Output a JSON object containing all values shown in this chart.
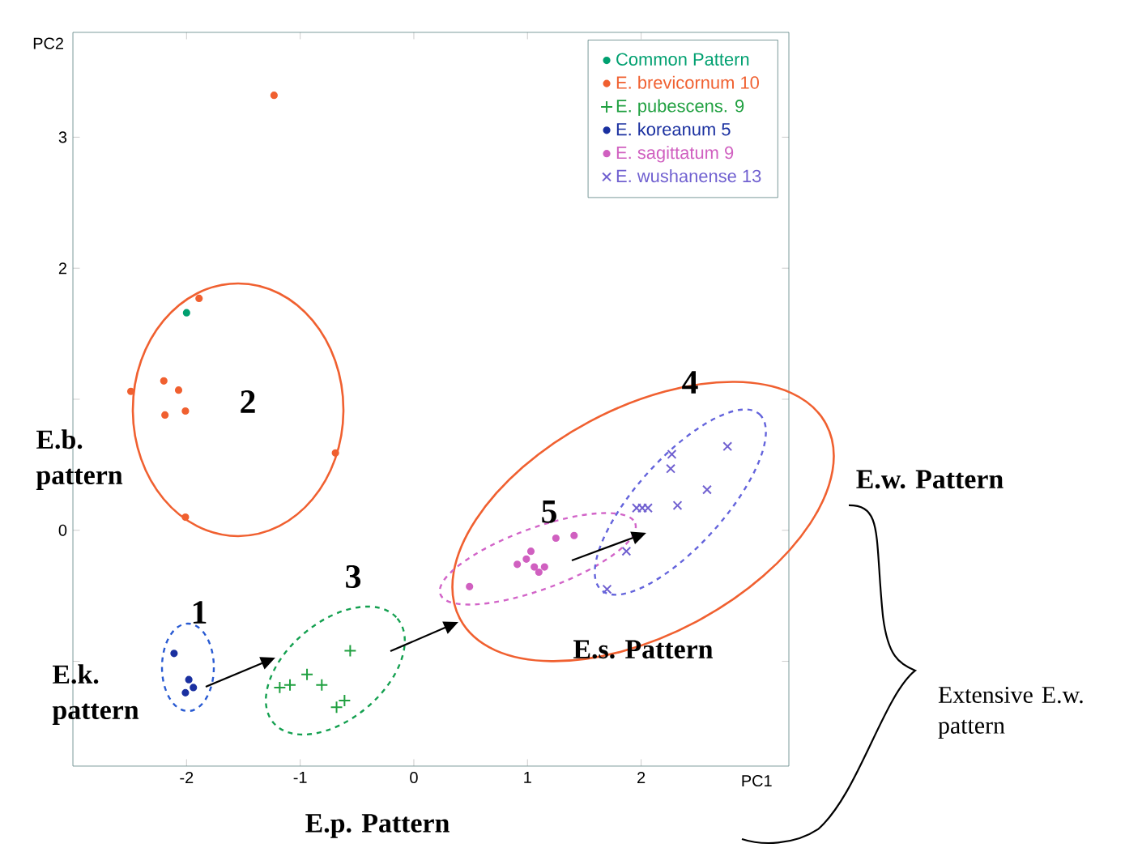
{
  "chart_data": {
    "type": "scatter",
    "xlabel": "PC1",
    "ylabel": "PC2",
    "xlim": [
      -3,
      3.3
    ],
    "ylim": [
      -1.8,
      3.8
    ],
    "xticks": [
      -2,
      -1,
      0,
      1,
      2
    ],
    "yticks": [
      {
        "value": -1,
        "label": null
      },
      0,
      {
        "value": 1,
        "label": null
      },
      2,
      3
    ],
    "legend": "top right",
    "series": [
      {
        "name": "Common Pattern",
        "color": "#00a070",
        "marker": "circle",
        "x": [
          -2.0
        ],
        "values": [
          1.66
        ]
      },
      {
        "name": "E. brevicornum  10",
        "color": "#f06030",
        "marker": "circle",
        "x": [
          -1.23,
          -1.89,
          -2.49,
          -2.2,
          -2.07,
          -2.19,
          -2.01,
          -0.69,
          -2.01
        ],
        "values": [
          3.32,
          1.77,
          1.06,
          1.14,
          1.07,
          0.88,
          0.91,
          0.59,
          0.1
        ]
      },
      {
        "name": "E. pubescens.  9",
        "color": "#20a040",
        "marker": "plus",
        "x": [
          -0.56,
          -1.09,
          -0.94,
          -0.81,
          -0.68,
          -0.61,
          -1.18
        ],
        "values": [
          -0.92,
          -1.18,
          -1.1,
          -1.18,
          -1.35,
          -1.3,
          -1.2
        ]
      },
      {
        "name": "E. koreanum 5",
        "color": "#1a30a0",
        "marker": "circle",
        "x": [
          -2.11,
          -1.98,
          -1.94,
          -2.01
        ],
        "values": [
          -0.94,
          -1.14,
          -1.2,
          -1.24
        ]
      },
      {
        "name": "E. sagittatum  9",
        "color": "#d060c0",
        "marker": "circle",
        "x": [
          0.49,
          0.99,
          1.06,
          1.15,
          1.03,
          1.25,
          1.41,
          1.1,
          0.91
        ],
        "values": [
          -0.43,
          -0.22,
          -0.28,
          -0.28,
          -0.16,
          -0.06,
          -0.04,
          -0.32,
          -0.26
        ]
      },
      {
        "name": "E. wushanense  13",
        "color": "#7060d0",
        "marker": "cross",
        "x": [
          2.76,
          2.27,
          2.26,
          2.58,
          1.96,
          2.06,
          2.32,
          1.87,
          1.7,
          2.01
        ],
        "values": [
          0.64,
          0.58,
          0.47,
          0.31,
          0.17,
          0.17,
          0.19,
          -0.16,
          -0.45,
          0.17
        ]
      }
    ],
    "annotations": [
      "1",
      "2",
      "3",
      "4",
      "5",
      "E.b. pattern",
      "E.k. pattern",
      "E.p. Pattern",
      "E.s. Pattern",
      "E.w. Pattern",
      "Extensive E.w. pattern"
    ]
  }
}
